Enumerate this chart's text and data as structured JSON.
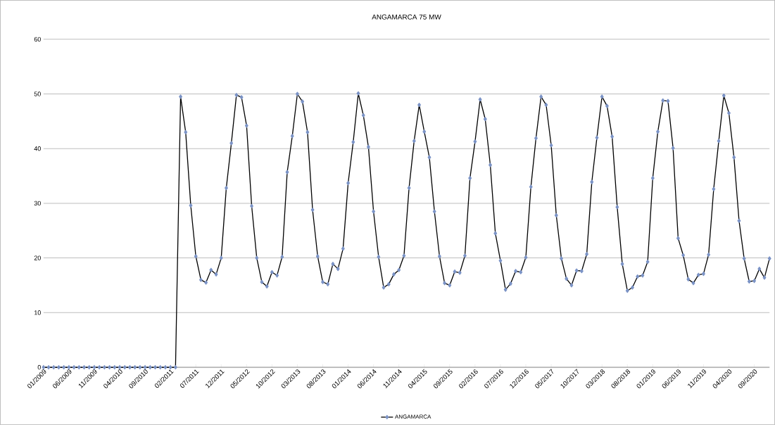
{
  "chart_data": {
    "type": "line",
    "title": "ANGAMARCA 75 MW",
    "categories": [
      "01/2009",
      null,
      null,
      null,
      null,
      "06/2009",
      null,
      null,
      null,
      null,
      "11/2009",
      null,
      null,
      null,
      null,
      "04/2010",
      null,
      null,
      null,
      null,
      "09/2010",
      null,
      null,
      null,
      null,
      "02/2011",
      null,
      null,
      null,
      null,
      "07/2011",
      null,
      null,
      null,
      null,
      "12/2011",
      null,
      null,
      null,
      null,
      "05/2012",
      null,
      null,
      null,
      null,
      "10/2012",
      null,
      null,
      null,
      null,
      "03/2013",
      null,
      null,
      null,
      null,
      "08/2013",
      null,
      null,
      null,
      null,
      "01/2014",
      null,
      null,
      null,
      null,
      "06/2014",
      null,
      null,
      null,
      null,
      "11/2014",
      null,
      null,
      null,
      null,
      "04/2015",
      null,
      null,
      null,
      null,
      "09/2015",
      null,
      null,
      null,
      null,
      "02/2016",
      null,
      null,
      null,
      null,
      "07/2016",
      null,
      null,
      null,
      null,
      "12/2016",
      null,
      null,
      null,
      null,
      "05/2017",
      null,
      null,
      null,
      null,
      "10/2017",
      null,
      null,
      null,
      null,
      "03/2018",
      null,
      null,
      null,
      null,
      "08/2018",
      null,
      null,
      null,
      null,
      "01/2019",
      null,
      null,
      null,
      null,
      "06/2019",
      null,
      null,
      null,
      null,
      "11/2019",
      null,
      null,
      null,
      null,
      "04/2020",
      null,
      null,
      null,
      null,
      "09/2020",
      null,
      null,
      null
    ],
    "series": [
      {
        "name": "ANGAMARCA",
        "color": "#000000",
        "values": [
          0,
          0,
          0,
          0,
          0,
          0,
          0,
          0,
          0,
          0,
          0,
          0,
          0,
          0,
          0,
          0,
          0,
          0,
          0,
          0,
          0,
          0,
          0,
          0,
          0,
          0,
          0,
          49.5,
          43,
          29.6,
          20.3,
          16,
          15.5,
          17.8,
          17,
          20,
          32.8,
          41,
          49.8,
          49.4,
          44.2,
          29.5,
          20,
          15.6,
          14.8,
          17.4,
          16.8,
          20.2,
          35.7,
          42.3,
          50,
          48.6,
          43,
          28.8,
          20.3,
          15.6,
          15.2,
          18.9,
          18,
          21.7,
          33.7,
          41.2,
          50.1,
          46.1,
          40.3,
          28.5,
          20.2,
          14.6,
          15.2,
          17,
          17.8,
          20.4,
          32.8,
          41.4,
          48,
          43.1,
          38.4,
          28.5,
          20.3,
          15.4,
          15,
          17.5,
          17.3,
          20.4,
          34.6,
          41.3,
          49,
          45.4,
          37,
          24.5,
          19.5,
          14.2,
          15.3,
          17.6,
          17.4,
          20.1,
          33,
          41.9,
          49.5,
          48,
          40.6,
          27.8,
          19.9,
          16.2,
          15,
          17.7,
          17.6,
          20.7,
          33.9,
          42,
          49.5,
          47.8,
          42.2,
          29.3,
          18.9,
          14,
          14.6,
          16.6,
          16.8,
          19.3,
          34.6,
          43.1,
          48.8,
          48.7,
          40.1,
          23.6,
          20.5,
          16.1,
          15.4,
          16.9,
          17.1,
          20.6,
          32.6,
          41.4,
          49.7,
          46.5,
          38.4,
          26.8,
          19.9,
          15.7,
          15.8,
          18,
          16.4,
          19.9
        ]
      }
    ],
    "ylim": [
      0,
      60
    ],
    "yticks": [
      0,
      10,
      20,
      30,
      40,
      50,
      60
    ],
    "grid": "y",
    "legend": "bottom",
    "marker": "diamond",
    "line_style": "solid"
  }
}
